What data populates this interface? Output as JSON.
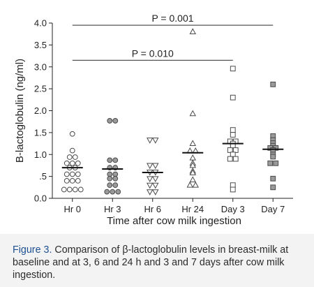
{
  "chart_data": {
    "type": "scatter",
    "title": "",
    "xlabel": "Time after cow milk ingestion",
    "ylabel": "Β-lactoglobulin (ng/ml)",
    "ylim": [
      0,
      4.0
    ],
    "yticks": [
      "0.0",
      ".5",
      "1.0",
      "1.5",
      "2.0",
      "2.5",
      "3.0",
      "3.5",
      "4.0"
    ],
    "categories": [
      "Hr 0",
      "Hr 3",
      "Hr 6",
      "Hr 24",
      "Day 3",
      "Day 7"
    ],
    "groups": [
      {
        "name": "Hr 0",
        "marker": "circle-open",
        "mean": 0.7,
        "values": [
          1.47,
          1.09,
          0.94,
          0.94,
          0.8,
          0.8,
          0.8,
          0.7,
          0.7,
          0.55,
          0.55,
          0.55,
          0.4,
          0.4,
          0.4,
          0.2,
          0.2,
          0.2,
          0.2
        ]
      },
      {
        "name": "Hr 3",
        "marker": "circle-filled",
        "mean": 0.67,
        "values": [
          1.77,
          1.77,
          0.87,
          0.87,
          0.7,
          0.7,
          0.55,
          0.55,
          0.45,
          0.45,
          0.3,
          0.3,
          0.15,
          0.15,
          0.15
        ]
      },
      {
        "name": "Hr 6",
        "marker": "triangle-down-open",
        "mean": 0.59,
        "values": [
          1.33,
          1.33,
          0.75,
          0.75,
          0.6,
          0.6,
          0.45,
          0.45,
          0.3,
          0.3,
          0.15,
          0.15
        ]
      },
      {
        "name": "Hr 24",
        "marker": "triangle-up-open",
        "mean": 1.04,
        "values": [
          3.8,
          1.93,
          1.25,
          1.08,
          1.08,
          0.92,
          0.8,
          0.75,
          0.62,
          0.58,
          0.42,
          0.3,
          0.3
        ]
      },
      {
        "name": "Day 3",
        "marker": "square-open",
        "mean": 1.25,
        "values": [
          2.96,
          2.3,
          1.56,
          1.45,
          1.3,
          1.3,
          1.25,
          1.2,
          1.1,
          1.1,
          1.0,
          0.9,
          0.9,
          0.3,
          0.2
        ]
      },
      {
        "name": "Day 7",
        "marker": "square-filled",
        "mean": 1.12,
        "values": [
          2.6,
          1.42,
          1.33,
          1.26,
          1.2,
          1.15,
          1.15,
          1.1,
          1.0,
          0.95,
          0.8,
          0.8,
          0.45,
          0.25
        ]
      }
    ],
    "annotations": [
      {
        "text": "P = 0.001",
        "from": "Hr 0",
        "to": "Day 7",
        "y": 3.95
      },
      {
        "text": "P = 0.010",
        "from": "Hr 0",
        "to": "Day 3",
        "y": 3.15
      }
    ],
    "grid": false,
    "legend": "none"
  },
  "caption": {
    "label": "Figure 3.",
    "text": " Comparison of β-lactoglobulin levels in breast-milk at baseline and at 3, 6 and 24 h and 3 and 7 days after cow milk ingestion."
  },
  "colors": {
    "marker_stroke": "#4a4a4a",
    "marker_fill": "#9a9a9a",
    "axis": "#222222",
    "caption_label": "#1d4f91",
    "caption_text": "#2b2b2b",
    "caption_background": "#f3f3f3"
  }
}
